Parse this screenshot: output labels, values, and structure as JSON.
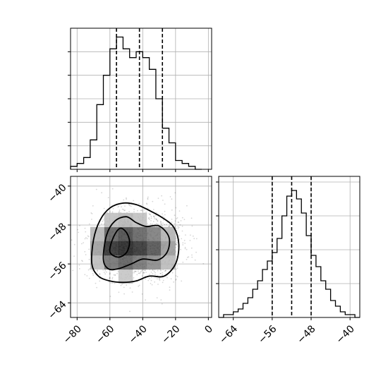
{
  "chart_data": {
    "type": "corner",
    "title": "",
    "parameters": [
      {
        "name": "",
        "range": [
          -84,
          2
        ],
        "ticks": [
          -80,
          -60,
          -40,
          -20,
          0
        ],
        "tick_labels": [
          "−80",
          "−60",
          "−40",
          "−20",
          "0"
        ]
      },
      {
        "name": "",
        "range": [
          -67,
          -38
        ],
        "ticks": [
          -64,
          -56,
          -48,
          -40
        ],
        "tick_labels": [
          "−64",
          "−56",
          "−48",
          "−40"
        ]
      }
    ],
    "panels": [
      {
        "type": "histogram",
        "parameter_index": 0,
        "grid": true,
        "bin_edges": [
          -84,
          -80,
          -76,
          -72,
          -68,
          -64,
          -60,
          -56,
          -52,
          -48,
          -44,
          -40,
          -36,
          -32,
          -28,
          -24,
          -20,
          -16,
          -12,
          -8,
          -4
        ],
        "counts": [
          1,
          2,
          4,
          10,
          22,
          32,
          41,
          45,
          41,
          38,
          40,
          38,
          34,
          24,
          14,
          9,
          3,
          2,
          1,
          0
        ],
        "ylim": [
          0,
          48
        ],
        "quantiles": [
          -56,
          -42,
          -28
        ]
      },
      {
        "type": "histogram",
        "parameter_index": 1,
        "grid": true,
        "bin_edges": [
          -67,
          -66,
          -65,
          -64,
          -63,
          -62,
          -61,
          -60,
          -59,
          -58,
          -57,
          -56,
          -55,
          -54,
          -53,
          -52,
          -51,
          -50,
          -49,
          -48,
          -47,
          -46,
          -45,
          -44,
          -43,
          -42,
          -41,
          -40,
          -39,
          -38
        ],
        "counts": [
          0,
          1,
          1,
          2,
          3,
          5,
          7,
          10,
          13,
          17,
          20,
          23,
          28,
          36,
          43,
          45,
          42,
          37,
          29,
          22,
          18,
          13,
          10,
          6,
          4,
          2,
          1,
          1,
          0
        ],
        "ylim": [
          0,
          50
        ],
        "quantiles": [
          -56,
          -52,
          -48
        ]
      },
      {
        "type": "2d_density",
        "x_parameter": 0,
        "y_parameter": 1,
        "grid": true,
        "xlim": [
          -84,
          2
        ],
        "ylim": [
          -67,
          -38
        ],
        "modes": [
          {
            "x": -55,
            "y": -52.5,
            "weight": 1.0
          },
          {
            "x": -34,
            "y": -52.5,
            "weight": 0.7
          }
        ],
        "contour_levels": 3,
        "scatter_points": true
      }
    ]
  }
}
